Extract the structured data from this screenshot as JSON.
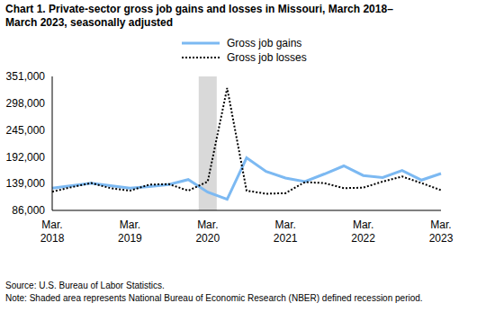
{
  "chart_data": {
    "type": "line",
    "title": "Chart 1. Private-sector gross job gains and losses in Missouri, March 2018–March 2023, seasonally adjusted",
    "categories": [
      "Mar. 2018",
      null,
      null,
      null,
      "Mar. 2019",
      null,
      null,
      null,
      "Mar. 2020",
      null,
      null,
      null,
      "Mar. 2021",
      null,
      null,
      null,
      "Mar. 2022",
      null,
      null,
      null,
      "Mar. 2023"
    ],
    "series": [
      {
        "name": "Gross job gains",
        "color": "#7cb9f2",
        "line_style": "solid",
        "values": [
          130000,
          135000,
          140000,
          135000,
          130000,
          133000,
          137000,
          147000,
          122000,
          108000,
          190000,
          163000,
          150000,
          143000,
          158000,
          174000,
          155000,
          151000,
          165000,
          146000,
          159000
        ]
      },
      {
        "name": "Gross job losses",
        "color": "#000000",
        "line_style": "dotted",
        "values": [
          123000,
          132000,
          140000,
          130000,
          125000,
          137000,
          138000,
          125000,
          143000,
          328000,
          125000,
          119000,
          120000,
          142000,
          140000,
          130000,
          131000,
          143000,
          153000,
          140000,
          126000
        ]
      }
    ],
    "ylim": [
      86000,
      351000
    ],
    "yticks": [
      {
        "value": 86000,
        "label": "86,000"
      },
      {
        "value": 139000,
        "label": "139,000"
      },
      {
        "value": 192000,
        "label": "192,000"
      },
      {
        "value": 245000,
        "label": "245,000"
      },
      {
        "value": 298000,
        "label": "298,000"
      },
      {
        "value": 351000,
        "label": "351,000"
      }
    ],
    "grid": false,
    "legend": "top",
    "shaded_period": "Mar. 2020",
    "source": "Source: U.S. Bureau of Labor Statistics.",
    "note": "Note: Shaded area represents National Bureau of Economic Research (NBER) defined recession period."
  }
}
